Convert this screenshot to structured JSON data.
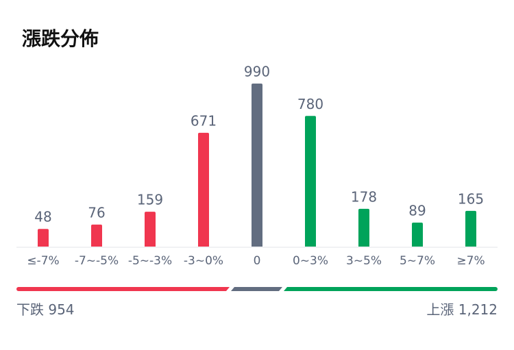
{
  "chart_data": {
    "type": "bar",
    "title": "漲跌分佈",
    "categories": [
      "≤-7%",
      "-7~-5%",
      "-5~-3%",
      "-3~0%",
      "0",
      "0~3%",
      "3~5%",
      "5~7%",
      "≥7%"
    ],
    "values": [
      48,
      76,
      159,
      671,
      990,
      780,
      178,
      89,
      165
    ],
    "colors": [
      "#f0364f",
      "#f0364f",
      "#f0364f",
      "#f0364f",
      "#626d80",
      "#00a35a",
      "#00a35a",
      "#00a35a",
      "#00a35a"
    ]
  },
  "summary": {
    "down": {
      "label": "下跌",
      "value": 954
    },
    "up": {
      "label": "上漲",
      "value": 1212,
      "value_label": "1,212"
    }
  }
}
